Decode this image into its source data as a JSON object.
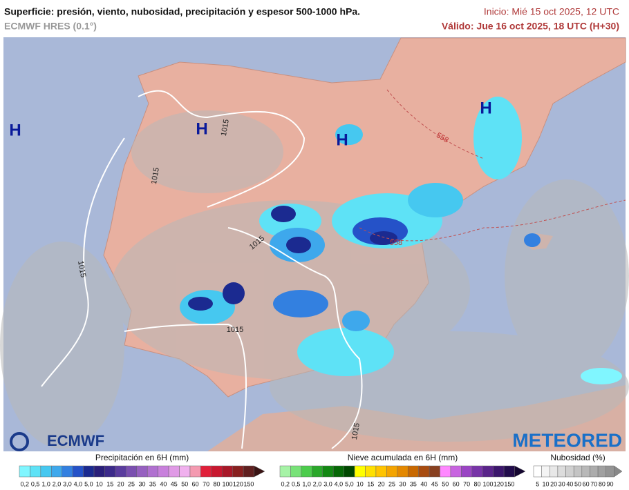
{
  "header": {
    "title": "Superficie: presión, viento, nubosidad, precipitación y espesor 500-1000 hPa.",
    "model": "ECMWF HRES (0.1°)",
    "init": "Inicio: Mié 15 oct 2025, 12 UTC",
    "valid": "Válido: Jue 16 oct 2025, 18 UTC (H+30)"
  },
  "map": {
    "highs": [
      "H",
      "H",
      "H",
      "H"
    ],
    "isobar_labels": [
      "1015",
      "1015",
      "1015",
      "1015",
      "1015",
      "1015"
    ],
    "thickness_labels": [
      "558",
      "558"
    ]
  },
  "logos": {
    "ecmwf": "ECMWF",
    "meteored": "METEORED"
  },
  "legends": {
    "precipitation": {
      "title": "Precipitación en 6H (mm)",
      "labels": [
        "0,2",
        "0,5",
        "1,0",
        "2,0",
        "3,0",
        "4,0",
        "5,0",
        "10",
        "15",
        "20",
        "25",
        "30",
        "35",
        "40",
        "45",
        "50",
        "60",
        "70",
        "80",
        "100",
        "120",
        "150"
      ],
      "colors": [
        "#80f6ff",
        "#5ee2f6",
        "#46c8f0",
        "#3ea8ec",
        "#3380e0",
        "#2552c8",
        "#1b2a90",
        "#2a1f7a",
        "#3c2a8a",
        "#5a3c9e",
        "#7a4fb0",
        "#9660c0",
        "#b070d0",
        "#c880dc",
        "#e09ae6",
        "#f0b0ee",
        "#f49ab0",
        "#e0203a",
        "#c81830",
        "#a81828",
        "#882020",
        "#602020",
        "#3a1414"
      ]
    },
    "snow": {
      "title": "Nieve acumulada en 6H (mm)",
      "labels": [
        "0,2",
        "0,5",
        "1,0",
        "2,0",
        "3,0",
        "4,0",
        "5,0",
        "10",
        "15",
        "20",
        "25",
        "30",
        "35",
        "40",
        "45",
        "50",
        "60",
        "70",
        "80",
        "100",
        "120",
        "150"
      ],
      "colors": [
        "#a6f3a6",
        "#78e278",
        "#4ccc4c",
        "#2aa82a",
        "#138813",
        "#066806",
        "#004800",
        "#ffff00",
        "#ffe000",
        "#ffc400",
        "#f4a400",
        "#e48800",
        "#c86800",
        "#a84c10",
        "#884020",
        "#ff88ff",
        "#c864e0",
        "#9a44c4",
        "#7834a8",
        "#5a248a",
        "#3c166c",
        "#220c4c",
        "#140630"
      ]
    },
    "cloud": {
      "title": "Nubosidad (%)",
      "labels": [
        "5",
        "10",
        "20",
        "30",
        "40",
        "50",
        "60",
        "70",
        "80",
        "90"
      ],
      "colors": [
        "#ffffff",
        "#f4f4f4",
        "#e8e8e8",
        "#dcdcdc",
        "#d0d0d0",
        "#c4c4c4",
        "#b8b8b8",
        "#acacac",
        "#a0a0a0",
        "#949494",
        "#888888"
      ]
    }
  }
}
